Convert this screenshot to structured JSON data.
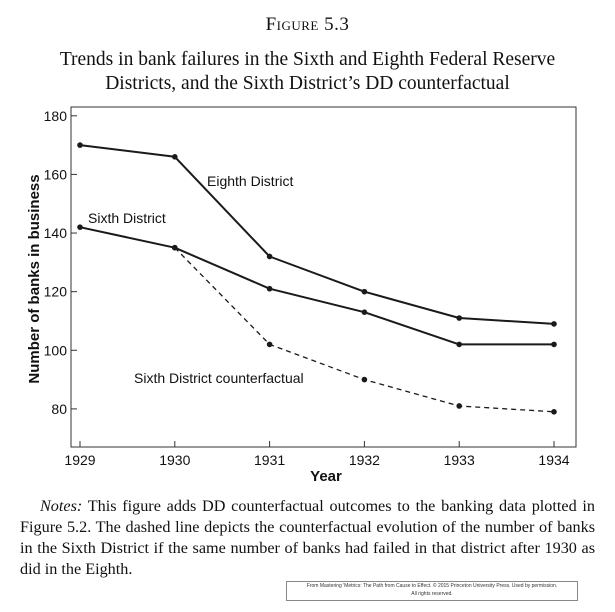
{
  "figure": {
    "label": "Figure 5.3",
    "title_lines": [
      "Trends in bank failures in the Sixth and Eighth Federal Reserve",
      "Districts, and the Sixth District’s DD counterfactual"
    ]
  },
  "chart_data": {
    "type": "line",
    "xlabel": "Year",
    "ylabel": "Number of banks in business",
    "x": [
      1929,
      1930,
      1931,
      1932,
      1933,
      1934
    ],
    "xlim": [
      1929,
      1934
    ],
    "ylim": [
      67,
      183
    ],
    "yticks": [
      80,
      100,
      120,
      140,
      160,
      180
    ],
    "grid": false,
    "series": [
      {
        "name": "Eighth District",
        "style": "solid",
        "values": [
          170,
          166,
          132,
          120,
          111,
          109
        ]
      },
      {
        "name": "Sixth District",
        "style": "solid",
        "values": [
          142,
          135,
          121,
          113,
          102,
          102
        ]
      },
      {
        "name": "Sixth District counterfactual",
        "style": "dashed",
        "x": [
          1930,
          1931,
          1932,
          1933,
          1934
        ],
        "values": [
          135,
          102,
          90,
          81,
          79
        ]
      }
    ],
    "line_color": "#1a1a1a"
  },
  "notes": {
    "label": "Notes:",
    "text": " This figure adds DD counterfactual outcomes to the banking data plotted in Figure 5.2. The dashed line depicts the counterfactual evolution of the number of banks in the Sixth District if the same number of banks had failed in that district after 1930 as did in the Eighth."
  },
  "credit": {
    "line1": "From Mastering 'Metrics: The Path from Cause to Effect. © 2015 Princeton University Press. Used by permission.",
    "line2": "All rights reserved."
  }
}
